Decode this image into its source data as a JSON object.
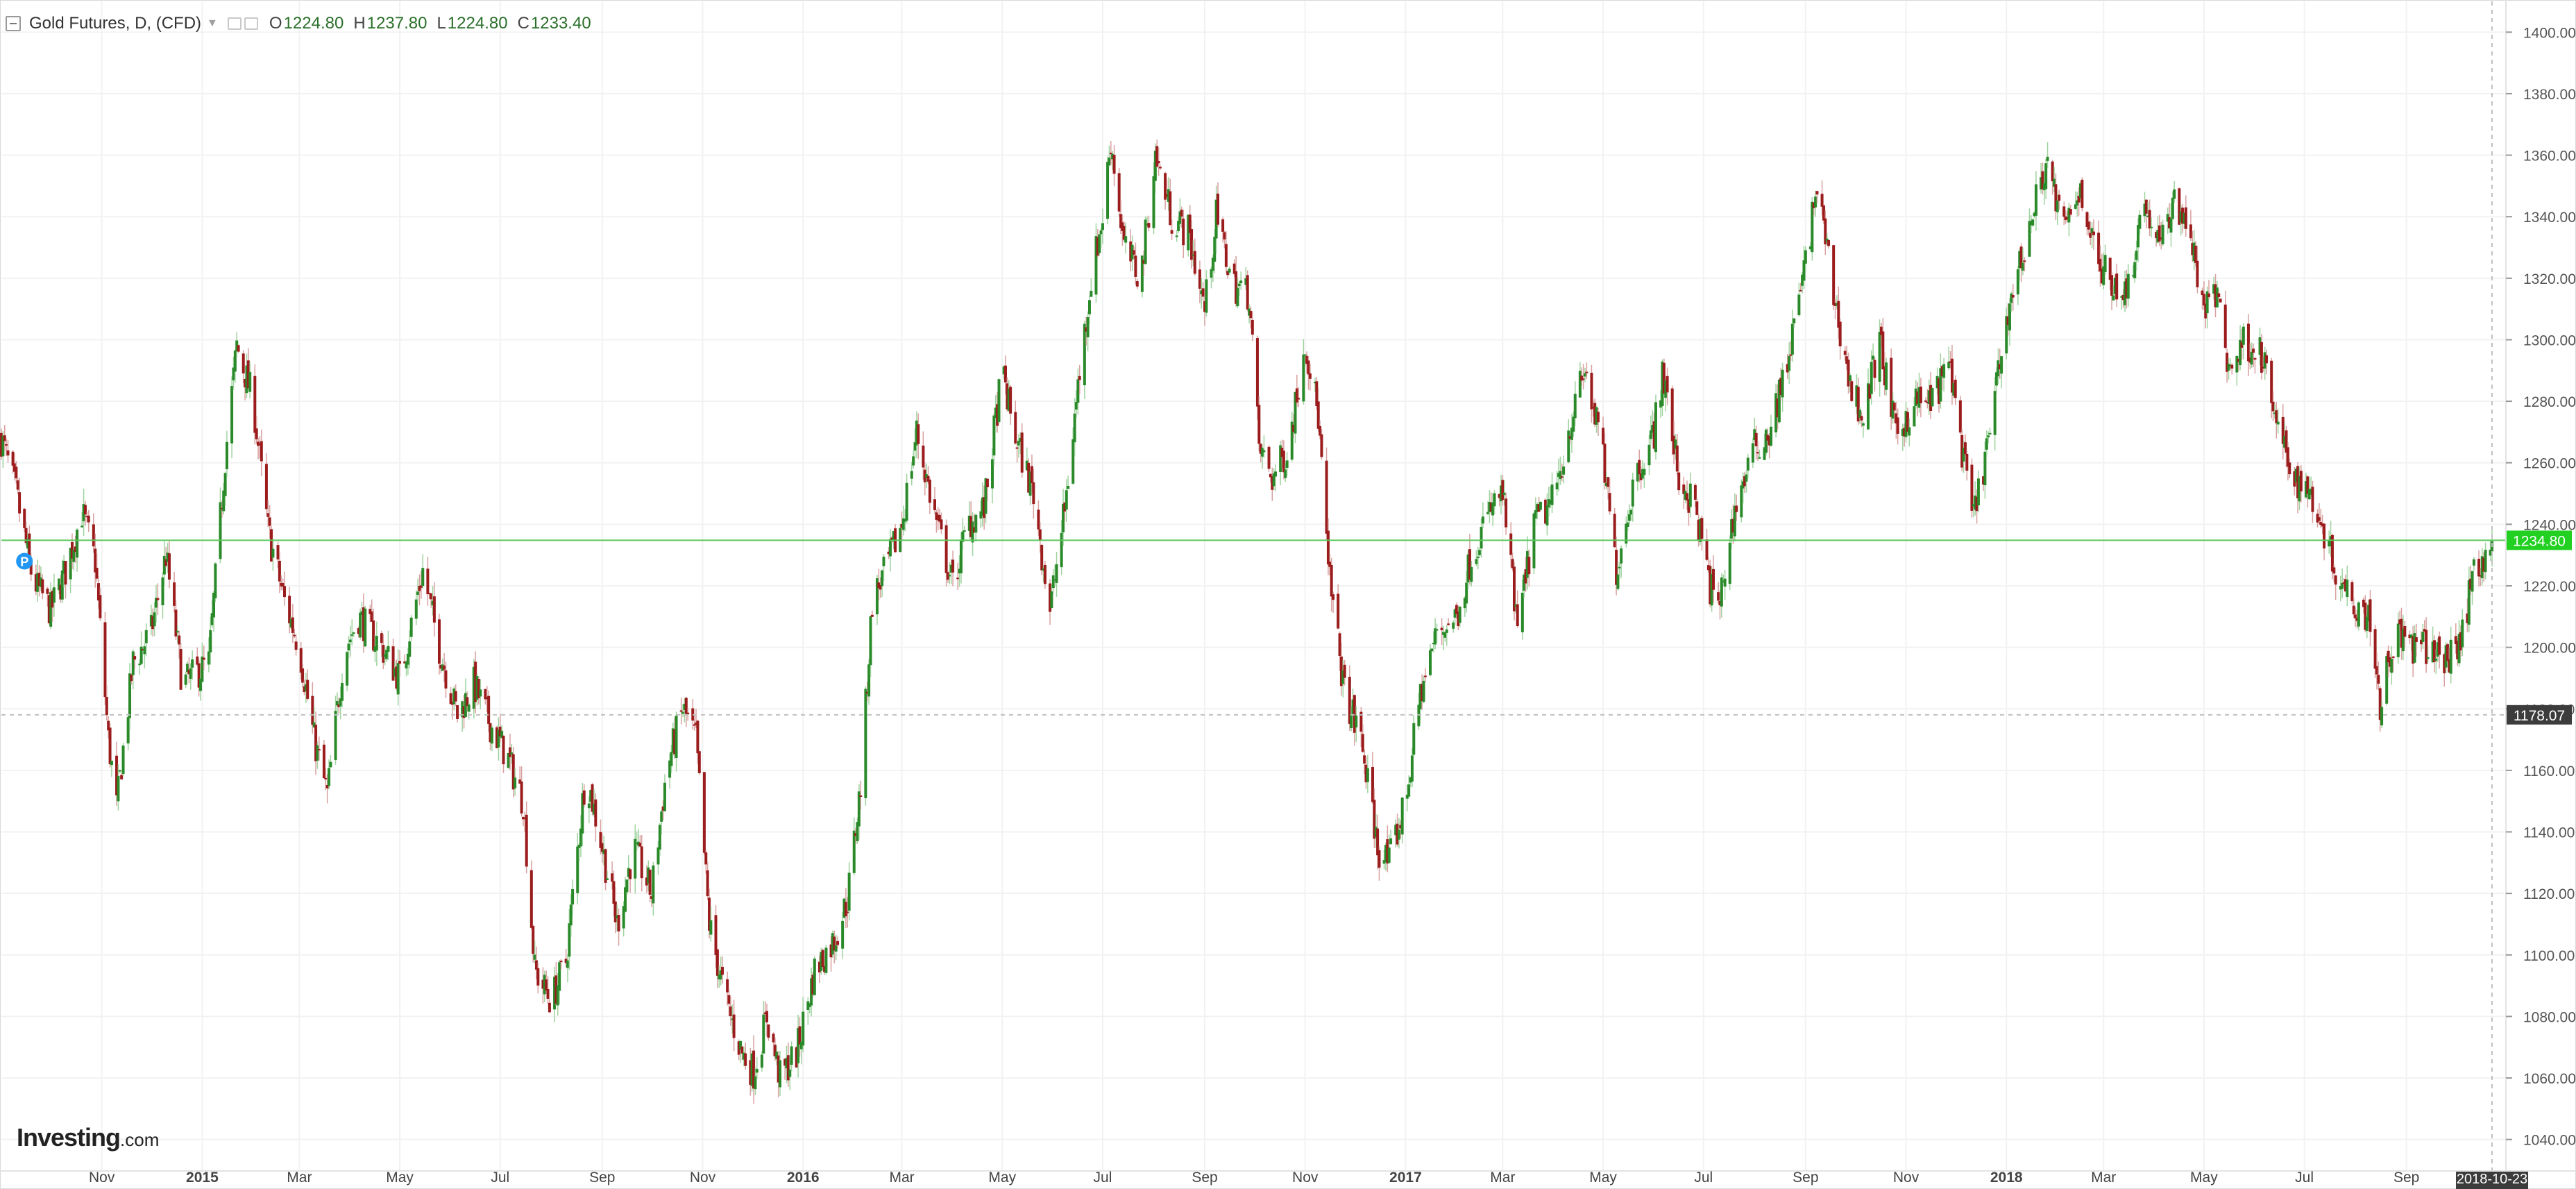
{
  "legend": {
    "title": "Gold Futures, D, (CFD)",
    "open_label": "O",
    "open": "1224.80",
    "high_label": "H",
    "high": "1237.80",
    "low_label": "L",
    "low": "1224.80",
    "close_label": "C",
    "close": "1233.40"
  },
  "branding": {
    "logo_main": "Investing",
    "logo_suffix": ".com"
  },
  "colors": {
    "up": "#2a8a2a",
    "down": "#9b1c1c",
    "grid": "#f2f2f2",
    "current_price_line": "#5cc85c",
    "current_price_badge": "#22d022",
    "crosshair_badge": "#3c3c3c",
    "marker": "#2196f3"
  },
  "chart_data": {
    "type": "candlestick",
    "title": "Gold Futures, D, (CFD)",
    "y_axis": {
      "min": 1030,
      "max": 1410,
      "ticks": [
        1040,
        1060,
        1080,
        1100,
        1120,
        1140,
        1160,
        1180,
        1200,
        1220,
        1240,
        1260,
        1280,
        1300,
        1320,
        1340,
        1360,
        1380,
        1400
      ],
      "tick_labels": [
        "1040.00",
        "1060.00",
        "1080.00",
        "1100.00",
        "1120.00",
        "1140.00",
        "1160.00",
        "1180.00",
        "1200.00",
        "1220.00",
        "1240.00",
        "1260.00",
        "1280.00",
        "1300.00",
        "1320.00",
        "1340.00",
        "1360.00",
        "1380.00",
        "1400.00"
      ],
      "side": "right"
    },
    "x_axis": {
      "start": "2014-09-01",
      "end": "2018-10-31",
      "ticks": [
        {
          "date": "2014-11-01",
          "label": "Nov",
          "bold": false
        },
        {
          "date": "2015-01-01",
          "label": "2015",
          "bold": true
        },
        {
          "date": "2015-03-01",
          "label": "Mar",
          "bold": false
        },
        {
          "date": "2015-05-01",
          "label": "May",
          "bold": false
        },
        {
          "date": "2015-07-01",
          "label": "Jul",
          "bold": false
        },
        {
          "date": "2015-09-01",
          "label": "Sep",
          "bold": false
        },
        {
          "date": "2015-11-01",
          "label": "Nov",
          "bold": false
        },
        {
          "date": "2016-01-01",
          "label": "2016",
          "bold": true
        },
        {
          "date": "2016-03-01",
          "label": "Mar",
          "bold": false
        },
        {
          "date": "2016-05-01",
          "label": "May",
          "bold": false
        },
        {
          "date": "2016-07-01",
          "label": "Jul",
          "bold": false
        },
        {
          "date": "2016-09-01",
          "label": "Sep",
          "bold": false
        },
        {
          "date": "2016-11-01",
          "label": "Nov",
          "bold": false
        },
        {
          "date": "2017-01-01",
          "label": "2017",
          "bold": true
        },
        {
          "date": "2017-03-01",
          "label": "Mar",
          "bold": false
        },
        {
          "date": "2017-05-01",
          "label": "May",
          "bold": false
        },
        {
          "date": "2017-07-01",
          "label": "Jul",
          "bold": false
        },
        {
          "date": "2017-09-01",
          "label": "Sep",
          "bold": false
        },
        {
          "date": "2017-11-01",
          "label": "Nov",
          "bold": false
        },
        {
          "date": "2018-01-01",
          "label": "2018",
          "bold": true
        },
        {
          "date": "2018-03-01",
          "label": "Mar",
          "bold": false
        },
        {
          "date": "2018-05-01",
          "label": "May",
          "bold": false
        },
        {
          "date": "2018-07-01",
          "label": "Jul",
          "bold": false
        },
        {
          "date": "2018-09-01",
          "label": "Sep",
          "bold": false
        }
      ],
      "crosshair_date": "2018-10-23",
      "crosshair_label": "2018-10-23"
    },
    "current_price": 1234.8,
    "current_price_label": "1234.80",
    "crosshair_price": 1178.07,
    "crosshair_price_label": "1178.07",
    "marker": {
      "date": "2014-09-15",
      "price": 1228,
      "label": "P"
    },
    "price_path_close": [
      [
        "2014-09-01",
        1268
      ],
      [
        "2014-09-10",
        1250
      ],
      [
        "2014-09-20",
        1222
      ],
      [
        "2014-10-01",
        1212
      ],
      [
        "2014-10-10",
        1225
      ],
      [
        "2014-10-20",
        1244
      ],
      [
        "2014-10-28",
        1228
      ],
      [
        "2014-11-05",
        1170
      ],
      [
        "2014-11-10",
        1148
      ],
      [
        "2014-11-20",
        1195
      ],
      [
        "2014-12-01",
        1205
      ],
      [
        "2014-12-10",
        1230
      ],
      [
        "2014-12-20",
        1188
      ],
      [
        "2015-01-05",
        1195
      ],
      [
        "2015-01-15",
        1262
      ],
      [
        "2015-01-22",
        1298
      ],
      [
        "2015-02-01",
        1280
      ],
      [
        "2015-02-10",
        1238
      ],
      [
        "2015-02-20",
        1215
      ],
      [
        "2015-03-01",
        1200
      ],
      [
        "2015-03-10",
        1170
      ],
      [
        "2015-03-18",
        1152
      ],
      [
        "2015-03-28",
        1198
      ],
      [
        "2015-04-06",
        1210
      ],
      [
        "2015-04-20",
        1200
      ],
      [
        "2015-05-01",
        1190
      ],
      [
        "2015-05-15",
        1225
      ],
      [
        "2015-05-25",
        1200
      ],
      [
        "2015-06-05",
        1178
      ],
      [
        "2015-06-15",
        1188
      ],
      [
        "2015-06-25",
        1175
      ],
      [
        "2015-07-05",
        1165
      ],
      [
        "2015-07-15",
        1150
      ],
      [
        "2015-07-22",
        1095
      ],
      [
        "2015-08-01",
        1085
      ],
      [
        "2015-08-10",
        1098
      ],
      [
        "2015-08-22",
        1160
      ],
      [
        "2015-09-01",
        1135
      ],
      [
        "2015-09-10",
        1110
      ],
      [
        "2015-09-20",
        1135
      ],
      [
        "2015-10-01",
        1120
      ],
      [
        "2015-10-10",
        1160
      ],
      [
        "2015-10-20",
        1180
      ],
      [
        "2015-10-28",
        1170
      ],
      [
        "2015-11-05",
        1110
      ],
      [
        "2015-11-15",
        1085
      ],
      [
        "2015-11-25",
        1068
      ],
      [
        "2015-12-02",
        1062
      ],
      [
        "2015-12-10",
        1080
      ],
      [
        "2015-12-18",
        1060
      ],
      [
        "2015-12-28",
        1068
      ],
      [
        "2016-01-08",
        1095
      ],
      [
        "2016-01-20",
        1105
      ],
      [
        "2016-01-28",
        1118
      ],
      [
        "2016-02-05",
        1155
      ],
      [
        "2016-02-12",
        1215
      ],
      [
        "2016-02-20",
        1225
      ],
      [
        "2016-03-01",
        1240
      ],
      [
        "2016-03-10",
        1270
      ],
      [
        "2016-03-20",
        1245
      ],
      [
        "2016-04-01",
        1220
      ],
      [
        "2016-04-10",
        1240
      ],
      [
        "2016-04-20",
        1245
      ],
      [
        "2016-05-01",
        1290
      ],
      [
        "2016-05-08",
        1270
      ],
      [
        "2016-05-20",
        1250
      ],
      [
        "2016-05-30",
        1212
      ],
      [
        "2016-06-08",
        1245
      ],
      [
        "2016-06-16",
        1285
      ],
      [
        "2016-06-24",
        1320
      ],
      [
        "2016-07-01",
        1340
      ],
      [
        "2016-07-06",
        1365
      ],
      [
        "2016-07-14",
        1330
      ],
      [
        "2016-07-24",
        1320
      ],
      [
        "2016-08-02",
        1360
      ],
      [
        "2016-08-12",
        1340
      ],
      [
        "2016-08-22",
        1335
      ],
      [
        "2016-09-01",
        1310
      ],
      [
        "2016-09-08",
        1340
      ],
      [
        "2016-09-18",
        1318
      ],
      [
        "2016-09-28",
        1315
      ],
      [
        "2016-10-04",
        1265
      ],
      [
        "2016-10-12",
        1255
      ],
      [
        "2016-10-22",
        1265
      ],
      [
        "2016-11-01",
        1300
      ],
      [
        "2016-11-09",
        1275
      ],
      [
        "2016-11-15",
        1225
      ],
      [
        "2016-11-25",
        1185
      ],
      [
        "2016-12-05",
        1170
      ],
      [
        "2016-12-15",
        1135
      ],
      [
        "2016-12-22",
        1130
      ],
      [
        "2017-01-01",
        1150
      ],
      [
        "2017-01-10",
        1185
      ],
      [
        "2017-01-20",
        1205
      ],
      [
        "2017-02-01",
        1210
      ],
      [
        "2017-02-10",
        1230
      ],
      [
        "2017-02-22",
        1245
      ],
      [
        "2017-03-01",
        1250
      ],
      [
        "2017-03-10",
        1205
      ],
      [
        "2017-03-20",
        1240
      ],
      [
        "2017-04-01",
        1248
      ],
      [
        "2017-04-12",
        1275
      ],
      [
        "2017-04-20",
        1290
      ],
      [
        "2017-04-30",
        1265
      ],
      [
        "2017-05-09",
        1225
      ],
      [
        "2017-05-20",
        1255
      ],
      [
        "2017-06-01",
        1270
      ],
      [
        "2017-06-06",
        1290
      ],
      [
        "2017-06-16",
        1255
      ],
      [
        "2017-06-26",
        1245
      ],
      [
        "2017-07-05",
        1220
      ],
      [
        "2017-07-10",
        1212
      ],
      [
        "2017-07-20",
        1245
      ],
      [
        "2017-08-01",
        1265
      ],
      [
        "2017-08-10",
        1270
      ],
      [
        "2017-08-20",
        1290
      ],
      [
        "2017-09-01",
        1325
      ],
      [
        "2017-09-08",
        1350
      ],
      [
        "2017-09-18",
        1315
      ],
      [
        "2017-09-28",
        1285
      ],
      [
        "2017-10-06",
        1275
      ],
      [
        "2017-10-16",
        1300
      ],
      [
        "2017-10-26",
        1268
      ],
      [
        "2017-11-06",
        1280
      ],
      [
        "2017-11-16",
        1280
      ],
      [
        "2017-11-28",
        1292
      ],
      [
        "2017-12-06",
        1260
      ],
      [
        "2017-12-12",
        1242
      ],
      [
        "2017-12-22",
        1270
      ],
      [
        "2018-01-02",
        1310
      ],
      [
        "2018-01-12",
        1330
      ],
      [
        "2018-01-25",
        1358
      ],
      [
        "2018-02-05",
        1335
      ],
      [
        "2018-02-15",
        1350
      ],
      [
        "2018-02-25",
        1325
      ],
      [
        "2018-03-05",
        1320
      ],
      [
        "2018-03-15",
        1315
      ],
      [
        "2018-03-25",
        1345
      ],
      [
        "2018-04-05",
        1330
      ],
      [
        "2018-04-12",
        1345
      ],
      [
        "2018-04-20",
        1340
      ],
      [
        "2018-05-01",
        1310
      ],
      [
        "2018-05-10",
        1315
      ],
      [
        "2018-05-16",
        1290
      ],
      [
        "2018-05-26",
        1300
      ],
      [
        "2018-06-05",
        1295
      ],
      [
        "2018-06-15",
        1270
      ],
      [
        "2018-06-25",
        1255
      ],
      [
        "2018-07-05",
        1250
      ],
      [
        "2018-07-12",
        1240
      ],
      [
        "2018-07-20",
        1225
      ],
      [
        "2018-08-01",
        1215
      ],
      [
        "2018-08-10",
        1210
      ],
      [
        "2018-08-16",
        1182
      ],
      [
        "2018-08-25",
        1205
      ],
      [
        "2018-09-05",
        1200
      ],
      [
        "2018-09-15",
        1200
      ],
      [
        "2018-09-25",
        1195
      ],
      [
        "2018-10-05",
        1205
      ],
      [
        "2018-10-12",
        1225
      ],
      [
        "2018-10-23",
        1234
      ]
    ]
  }
}
